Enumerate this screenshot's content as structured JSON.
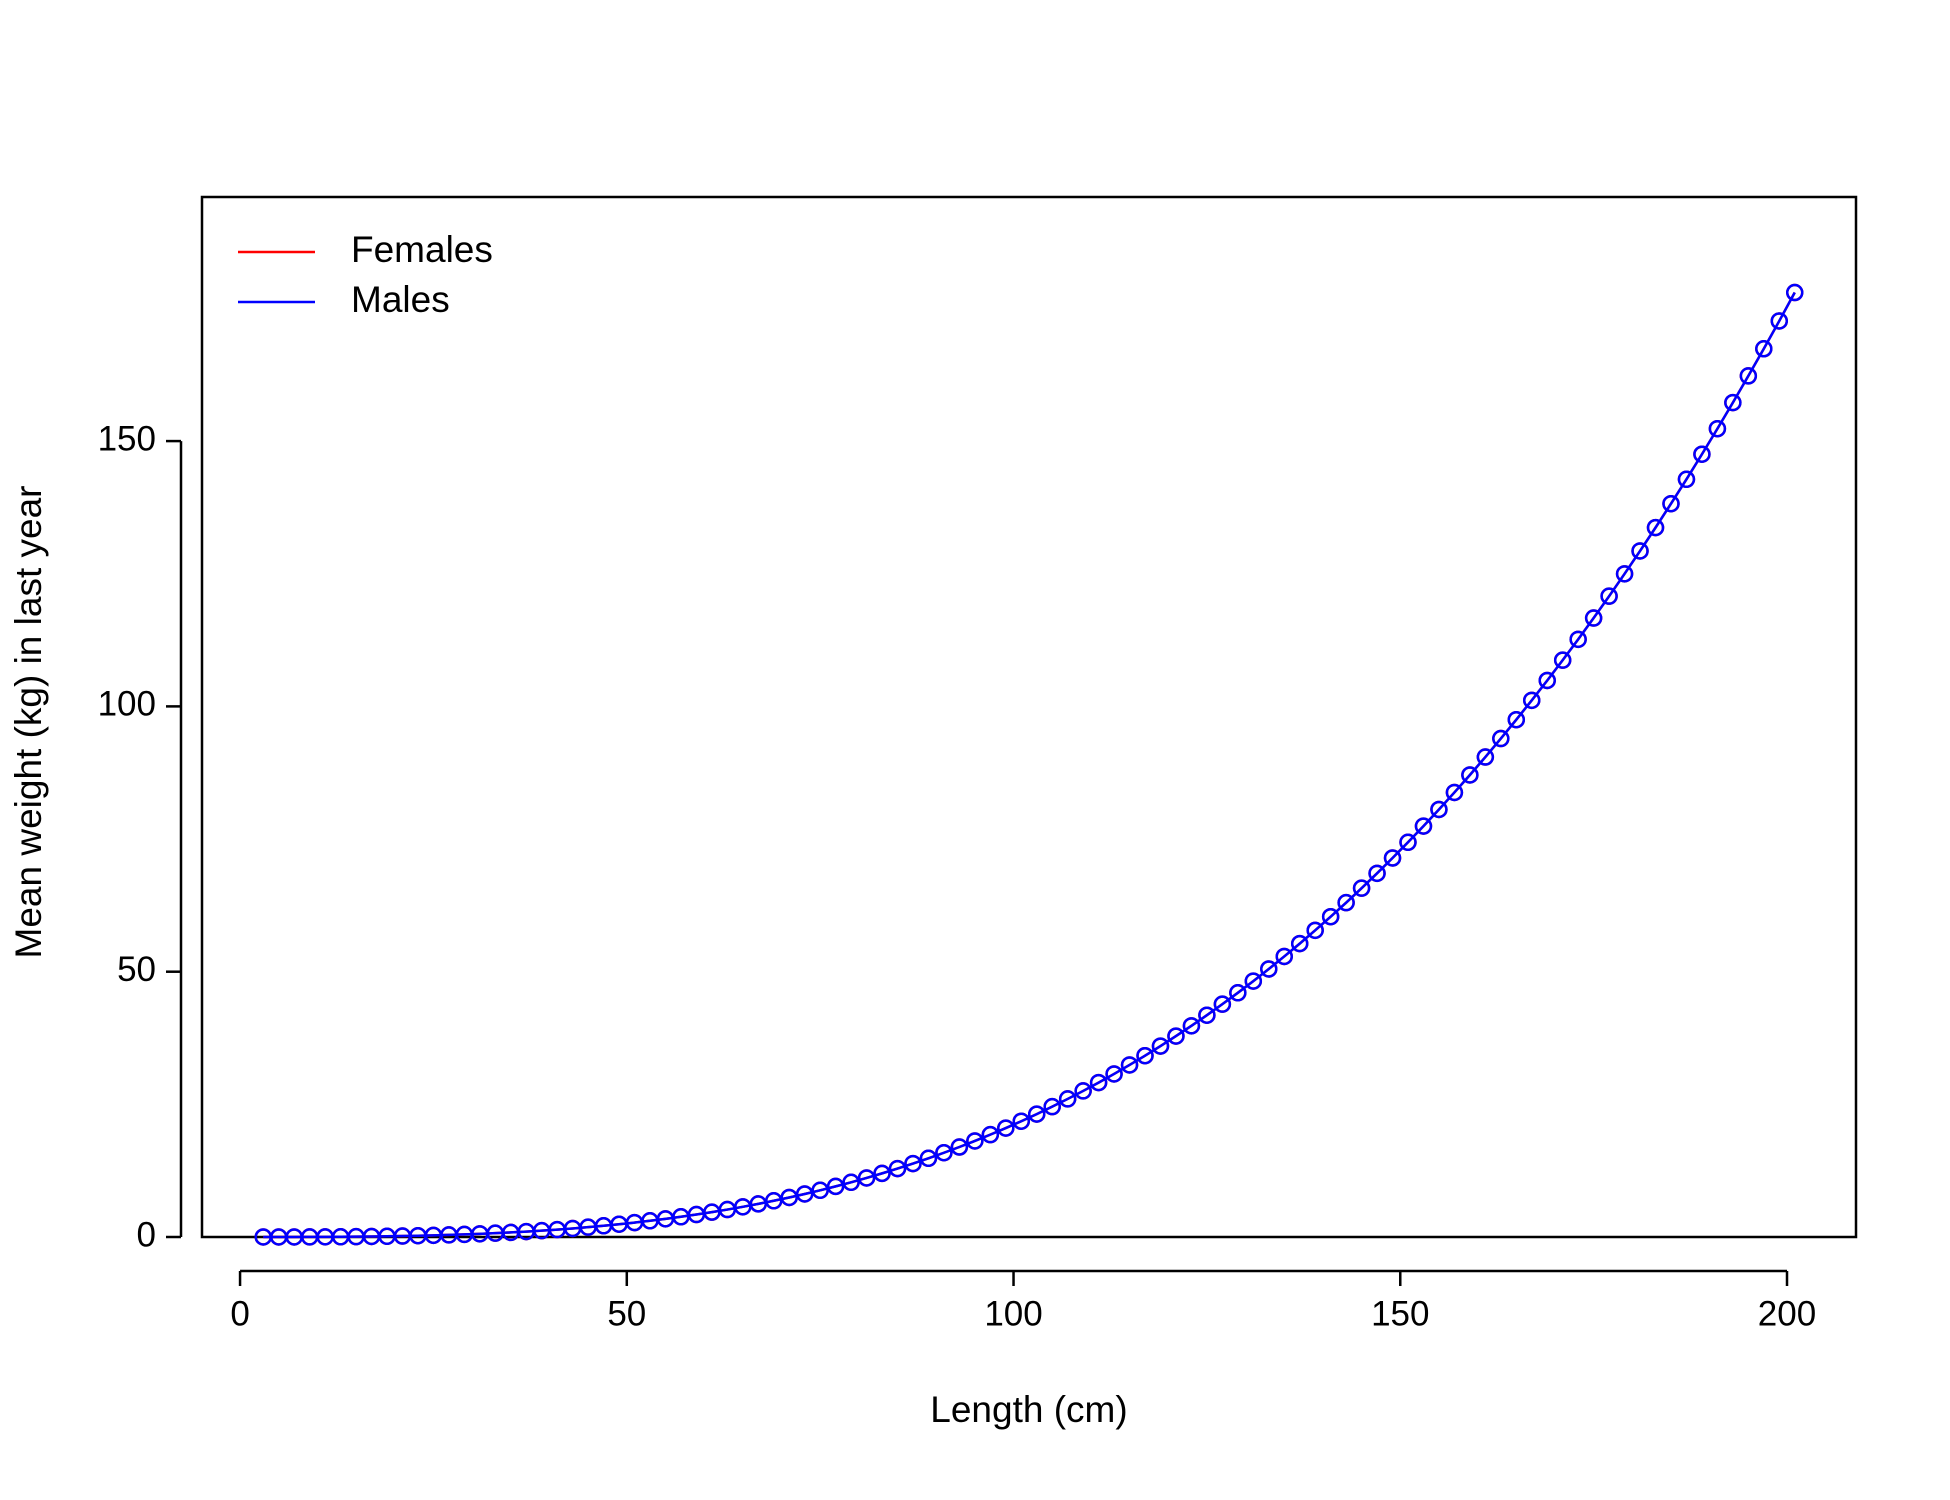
{
  "chart_data": {
    "type": "line",
    "x_label": "Length (cm)",
    "y_label": "Mean weight (kg) in last year",
    "x": [
      3,
      5,
      7,
      9,
      11,
      13,
      15,
      17,
      19,
      21,
      23,
      25,
      27,
      29,
      31,
      33,
      35,
      37,
      39,
      41,
      43,
      45,
      47,
      49,
      51,
      53,
      55,
      57,
      59,
      61,
      63,
      65,
      67,
      69,
      71,
      73,
      75,
      77,
      79,
      81,
      83,
      85,
      87,
      89,
      91,
      93,
      95,
      97,
      99,
      101,
      103,
      105,
      107,
      109,
      111,
      113,
      115,
      117,
      119,
      121,
      123,
      125,
      127,
      129,
      131,
      133,
      135,
      137,
      139,
      141,
      143,
      145,
      147,
      149,
      151,
      153,
      155,
      157,
      159,
      161,
      163,
      165,
      167,
      169,
      171,
      173,
      175,
      177,
      179,
      181,
      183,
      185,
      187,
      189,
      191,
      193,
      195,
      197,
      199,
      201
    ],
    "series": [
      {
        "name": "Females",
        "color": "#ff0000",
        "values": [
          0.0005,
          0.002,
          0.006,
          0.014,
          0.025,
          0.042,
          0.065,
          0.095,
          0.134,
          0.181,
          0.239,
          0.309,
          0.39,
          0.485,
          0.595,
          0.72,
          0.861,
          1.02,
          1.198,
          1.395,
          1.613,
          1.853,
          2.116,
          2.403,
          2.715,
          3.053,
          3.418,
          3.811,
          4.234,
          4.687,
          5.172,
          5.689,
          6.24,
          6.826,
          7.447,
          8.105,
          8.802,
          9.538,
          10.31,
          11.13,
          11.99,
          12.89,
          13.84,
          14.83,
          15.88,
          16.96,
          18.1,
          19.29,
          20.53,
          21.82,
          23.16,
          24.56,
          26.02,
          27.53,
          29.1,
          30.73,
          32.42,
          34.17,
          35.98,
          37.86,
          39.8,
          41.8,
          43.88,
          46.02,
          48.23,
          50.51,
          52.87,
          55.29,
          57.79,
          60.36,
          63.01,
          65.74,
          68.54,
          71.43,
          74.39,
          77.44,
          80.57,
          83.78,
          87.07,
          90.46,
          93.94,
          97.49,
          101.14,
          104.88,
          108.71,
          112.64,
          116.65,
          120.77,
          124.98,
          129.29,
          133.69,
          138.2,
          142.8,
          147.52,
          152.33,
          157.25,
          162.28,
          167.4,
          172.64,
          178
        ]
      },
      {
        "name": "Males",
        "color": "#0000ff",
        "values": [
          0.0005,
          0.002,
          0.006,
          0.014,
          0.025,
          0.042,
          0.065,
          0.095,
          0.134,
          0.181,
          0.239,
          0.309,
          0.39,
          0.485,
          0.595,
          0.72,
          0.861,
          1.02,
          1.198,
          1.395,
          1.613,
          1.853,
          2.116,
          2.403,
          2.715,
          3.053,
          3.418,
          3.811,
          4.234,
          4.687,
          5.172,
          5.689,
          6.24,
          6.826,
          7.447,
          8.105,
          8.802,
          9.538,
          10.31,
          11.13,
          11.99,
          12.89,
          13.84,
          14.83,
          15.88,
          16.96,
          18.1,
          19.29,
          20.53,
          21.82,
          23.16,
          24.56,
          26.02,
          27.53,
          29.1,
          30.73,
          32.42,
          34.17,
          35.98,
          37.86,
          39.8,
          41.8,
          43.88,
          46.02,
          48.23,
          50.51,
          52.87,
          55.29,
          57.79,
          60.36,
          63.01,
          65.74,
          68.54,
          71.43,
          74.39,
          77.44,
          80.57,
          83.78,
          87.07,
          90.46,
          93.94,
          97.49,
          101.14,
          104.88,
          108.71,
          112.64,
          116.65,
          120.77,
          124.98,
          129.29,
          133.69,
          138.2,
          142.8,
          147.52,
          152.33,
          157.25,
          162.28,
          167.4,
          172.64,
          178
        ]
      }
    ],
    "xlim": [
      -4.92,
      208.92
    ],
    "xticks": [
      0,
      50,
      100,
      150,
      200
    ],
    "ylim": [
      0,
      196
    ],
    "yticks": [
      0,
      50,
      100,
      150
    ],
    "markers": true,
    "legend": "topleft"
  }
}
